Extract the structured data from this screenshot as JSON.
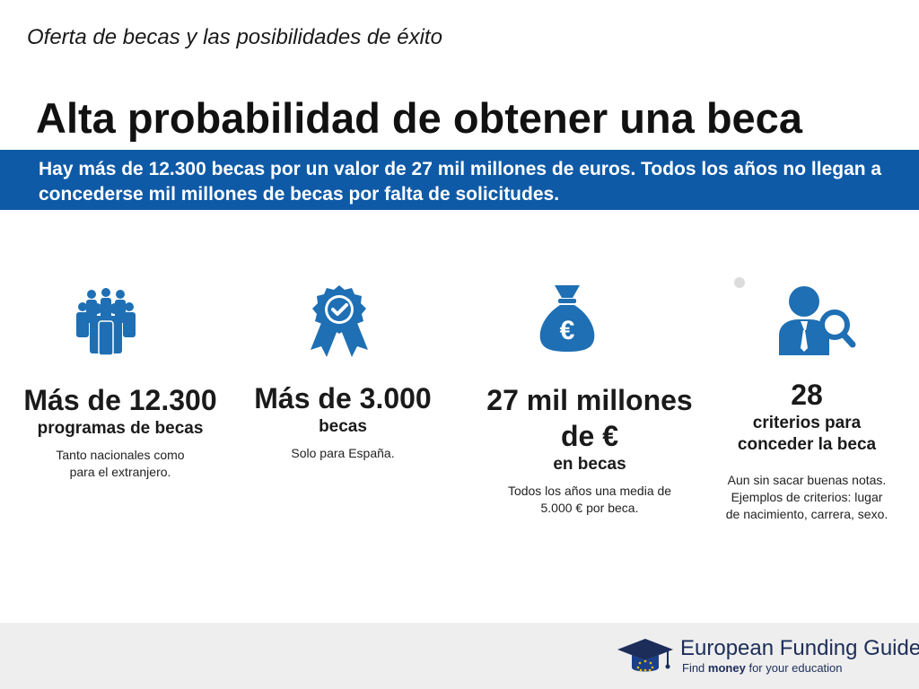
{
  "header": {
    "subtitle": "Oferta de becas y las posibilidades de éxito",
    "title": "Alta probabilidad de obtener una beca"
  },
  "banner": {
    "text": "Hay más de 12.300 becas por un valor de 27 mil millones de euros. Todos los años no llegan a concederse mil millones de becas por falta de solicitudes."
  },
  "colors": {
    "accent": "#0e5aa7",
    "icon": "#1e6fb4"
  },
  "stats": [
    {
      "icon": "people-group-icon",
      "headline": "Más de 12.300",
      "caption": "programas de becas",
      "note_line1": "Tanto nacionales como",
      "note_line2": "para el extranjero."
    },
    {
      "icon": "award-ribbon-icon",
      "headline": "Más de 3.000",
      "caption": "becas",
      "note_line1": "Solo para España.",
      "note_line2": ""
    },
    {
      "icon": "money-bag-euro-icon",
      "headline_line1": "27 mil millones",
      "headline_line2": "de €",
      "caption": "en becas",
      "note_line1": "Todos los años una media de",
      "note_line2": "5.000 € por beca."
    },
    {
      "icon": "person-search-icon",
      "headline": "28",
      "caption_line1": "criterios para",
      "caption_line2": "conceder la beca",
      "note_line1": "Aun sin sacar buenas notas.",
      "note_line2": "Ejemplos de criterios: lugar",
      "note_line3": "de nacimiento, carrera, sexo."
    }
  ],
  "footer": {
    "logo_name": "European Funding Guide",
    "tagline_pre": "Find",
    "tagline_bold": "money",
    "tagline_post": "for your education"
  }
}
